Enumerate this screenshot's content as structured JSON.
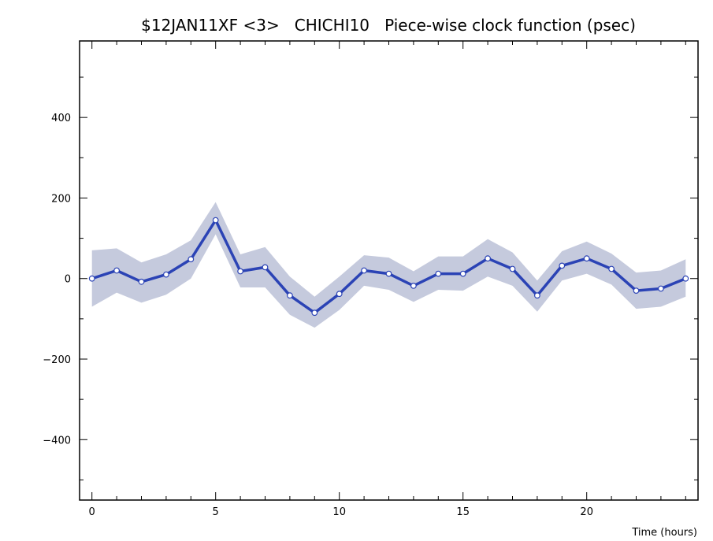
{
  "chart_data": {
    "type": "line",
    "title": "$12JAN11XF <3>   CHICHI10   Piece-wise clock function (psec)",
    "xlabel": "Time (hours)",
    "ylabel": "",
    "xlim": [
      -0.5,
      24.5
    ],
    "ylim": [
      -550,
      590
    ],
    "x_major_ticks": [
      0,
      5,
      10,
      15,
      20
    ],
    "y_major_ticks": [
      -400,
      -200,
      0,
      200,
      400
    ],
    "grid": false,
    "colors": {
      "line": "#2b43b5",
      "band": "#c5cadd",
      "marker_fill": "#ffffff"
    },
    "series": [
      {
        "x": [
          0,
          1,
          2,
          3,
          4,
          5,
          6,
          7,
          8,
          9,
          10,
          11,
          12,
          13,
          14,
          15,
          16,
          17,
          18,
          19,
          20,
          21,
          22,
          23,
          24
        ],
        "values": [
          0,
          20,
          -8,
          10,
          48,
          145,
          18,
          28,
          -42,
          -85,
          -38,
          20,
          12,
          -18,
          12,
          12,
          50,
          24,
          -42,
          32,
          50,
          24,
          -30,
          -25,
          0
        ],
        "lower": [
          -70,
          -35,
          -60,
          -40,
          0,
          110,
          -22,
          -22,
          -90,
          -122,
          -78,
          -18,
          -28,
          -58,
          -28,
          -30,
          5,
          -18,
          -82,
          -5,
          12,
          -15,
          -75,
          -70,
          -45
        ],
        "upper": [
          70,
          75,
          40,
          60,
          95,
          190,
          60,
          78,
          5,
          -45,
          5,
          58,
          52,
          18,
          55,
          55,
          98,
          65,
          -5,
          68,
          92,
          62,
          15,
          20,
          48
        ]
      }
    ]
  }
}
